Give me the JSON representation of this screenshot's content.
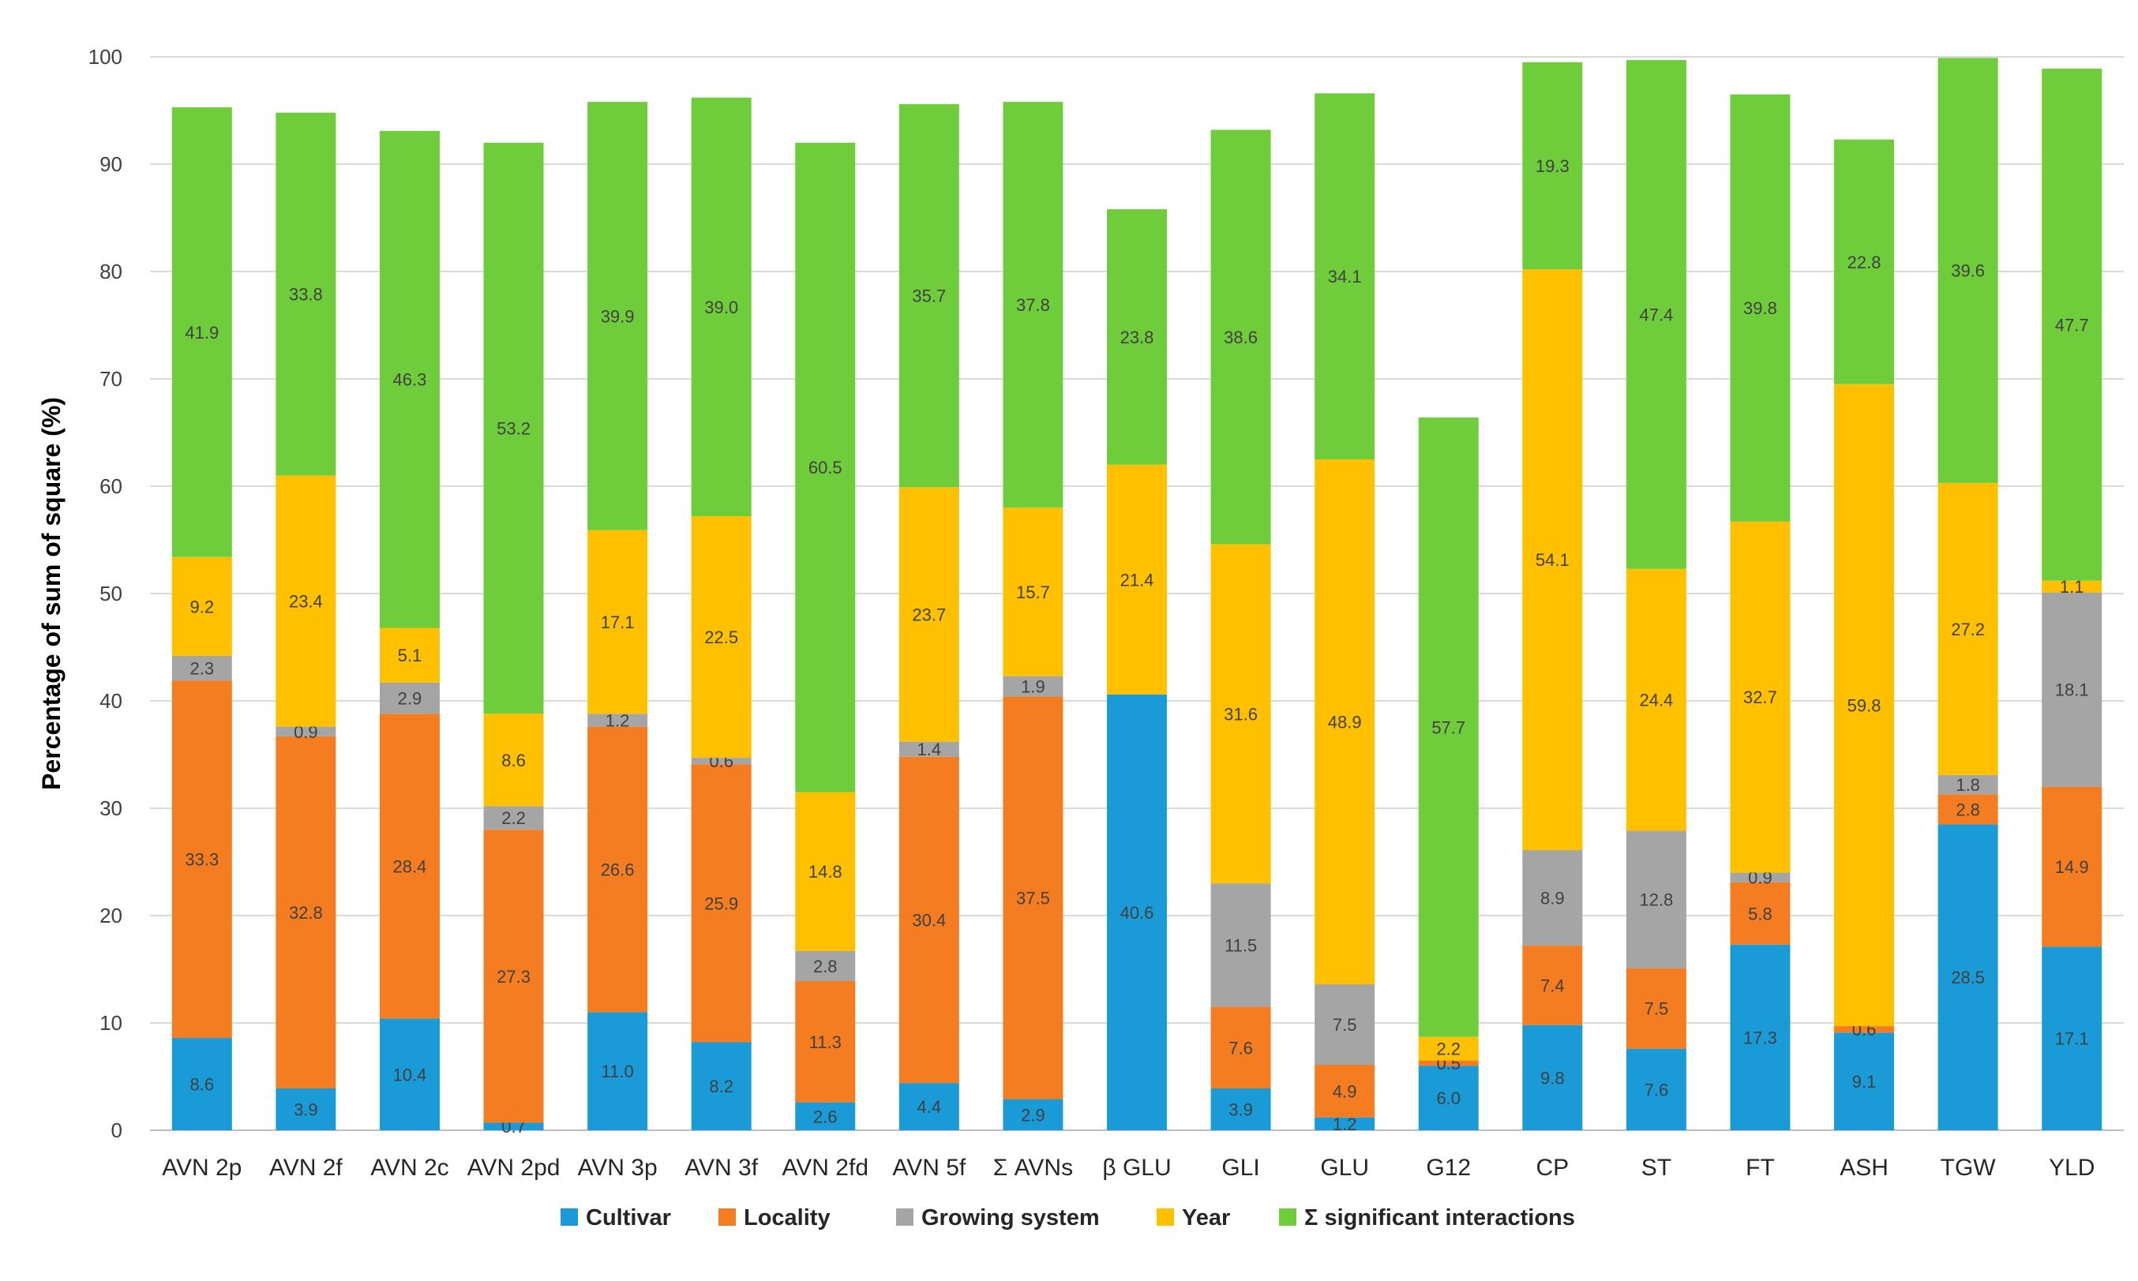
{
  "chart_data": {
    "type": "bar",
    "stacked": true,
    "title": "",
    "xlabel": "",
    "ylabel": "Percentage of sum of square (%)",
    "ylim": [
      0,
      100
    ],
    "yticks": [
      0,
      10,
      20,
      30,
      40,
      50,
      60,
      70,
      80,
      90,
      100
    ],
    "ytick_labels": [
      "0",
      "10",
      "20",
      "30",
      "40",
      "50",
      "60",
      "70",
      "80",
      "90",
      "100"
    ],
    "grid": true,
    "legend_position": "bottom",
    "categories": [
      "AVN 2p",
      "AVN 2f",
      "AVN 2c",
      "AVN 2pd",
      "AVN 3p",
      "AVN 3f",
      "AVN 2fd",
      "AVN 5f",
      "Σ AVNs",
      "β GLU",
      "GLI",
      "GLU",
      "G12",
      "CP",
      "ST",
      "FT",
      "ASH",
      "TGW",
      "YLD"
    ],
    "series": [
      {
        "name": "Cultivar",
        "color": "#1a9ad6",
        "values": [
          8.6,
          3.9,
          10.4,
          0.7,
          11.0,
          8.2,
          2.6,
          4.4,
          2.9,
          40.6,
          3.9,
          1.2,
          6.0,
          9.8,
          7.6,
          17.3,
          9.1,
          28.5,
          17.1
        ],
        "labels": [
          "8.6",
          "3.9",
          "10.4",
          "0.7",
          "11.0",
          "8.2",
          "2.6",
          "4.4",
          "2.9",
          "40.6",
          "3.9",
          "1.2",
          "6.0",
          "9.8",
          "7.6",
          "17.3",
          "9.1",
          "28.5",
          "17.1"
        ]
      },
      {
        "name": "Locality",
        "color": "#f47c21",
        "values": [
          33.3,
          32.8,
          28.4,
          27.3,
          26.6,
          25.9,
          11.3,
          30.4,
          37.5,
          0,
          7.6,
          4.9,
          0.5,
          7.4,
          7.5,
          5.8,
          0,
          2.8,
          14.9
        ],
        "labels": [
          "33.3",
          "32.8",
          "28.4",
          "27.3",
          "26.6",
          "25.9",
          "11.3",
          "30.4",
          "37.5",
          "",
          "7.6",
          "4.9",
          "0.5",
          "7.4",
          "7.5",
          "5.8",
          "",
          "2.8",
          "14.9"
        ]
      },
      {
        "name": "Growing system",
        "color": "#a5a5a5",
        "values": [
          2.3,
          0.9,
          2.9,
          2.2,
          1.2,
          0.6,
          2.8,
          1.4,
          1.9,
          0,
          11.5,
          7.5,
          0,
          8.9,
          12.8,
          0.9,
          0,
          1.8,
          18.1
        ],
        "labels": [
          "2.3",
          "0.9",
          "2.9",
          "2.2",
          "1.2",
          "0.6",
          "2.8",
          "1.4",
          "1.9",
          "",
          "11.5",
          "7.5",
          "",
          "8.9",
          "12.8",
          "0.9",
          "",
          "1.8",
          "18.1"
        ]
      },
      {
        "name": "Year",
        "color": "#ffc000",
        "values": [
          9.2,
          23.4,
          5.1,
          8.6,
          17.1,
          22.5,
          14.8,
          23.7,
          15.7,
          21.4,
          31.6,
          48.9,
          2.2,
          54.1,
          24.4,
          32.7,
          59.8,
          27.2,
          1.1
        ],
        "labels": [
          "9.2",
          "23.4",
          "5.1",
          "8.6",
          "17.1",
          "22.5",
          "14.8",
          "23.7",
          "15.7",
          "21.4",
          "31.6",
          "48.9",
          "2.2",
          "54.1",
          "24.4",
          "32.7",
          "59.8",
          "27.2",
          "1.1"
        ]
      },
      {
        "name": "Σ significant interactions",
        "color": "#6fcd3c",
        "values": [
          41.9,
          33.8,
          46.3,
          53.2,
          39.9,
          39.0,
          60.5,
          35.7,
          37.8,
          23.8,
          38.6,
          34.1,
          57.7,
          19.3,
          47.4,
          39.8,
          22.8,
          39.6,
          47.7
        ],
        "labels": [
          "41.9",
          "33.8",
          "46.3",
          "53.2",
          "39.9",
          "39.0",
          "60.5",
          "35.7",
          "37.8",
          "23.8",
          "38.6",
          "34.1",
          "57.7",
          "19.3",
          "47.4",
          "39.8",
          "22.8",
          "39.6",
          "47.7"
        ]
      }
    ],
    "extra_segments": [
      {
        "category": "ASH",
        "after_series": "Cultivar",
        "value": 0.6,
        "label": "0.6"
      }
    ]
  }
}
